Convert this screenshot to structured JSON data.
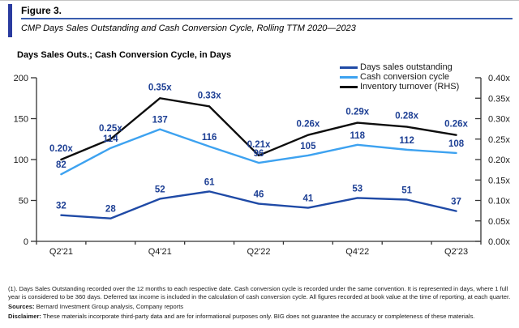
{
  "header": {
    "figure_label": "Figure 3.",
    "title": "CMP Days Sales Outstanding and Cash Conversion Cycle, Rolling TTM 2020—2023"
  },
  "chart_title": "Days Sales Outs.; Cash Conversion Cycle, in Days",
  "chart_data": {
    "type": "line",
    "categories": [
      "Q2'21",
      "",
      "Q4'21",
      "",
      "Q2'22",
      "",
      "Q4'22",
      "",
      "Q2'23"
    ],
    "series": [
      {
        "name": "Days sales outstanding",
        "axis": "left",
        "color": "#1f4aa6",
        "values": [
          32,
          28,
          52,
          61,
          46,
          41,
          53,
          51,
          37
        ],
        "labels": [
          "32",
          "28",
          "52",
          "61",
          "46",
          "41",
          "53",
          "51",
          "37"
        ],
        "label_dy": 8
      },
      {
        "name": "Cash conversion cycle",
        "axis": "left",
        "color": "#3da2f0",
        "values": [
          82,
          114,
          137,
          116,
          96,
          105,
          118,
          112,
          108
        ],
        "labels": [
          "82",
          "114",
          "137",
          "116",
          "96",
          "105",
          "118",
          "112",
          "108"
        ],
        "label_dy": 8
      },
      {
        "name": "Inventory turnover (RHS)",
        "axis": "right",
        "color": "#0d0d0d",
        "values": [
          0.2,
          0.25,
          0.35,
          0.33,
          0.21,
          0.26,
          0.29,
          0.28,
          0.26
        ],
        "labels": [
          "0.20x",
          "0.25x",
          "0.35x",
          "0.33x",
          "0.21x",
          "0.26x",
          "0.29x",
          "0.28x",
          "0.26x"
        ],
        "label_dy": 10
      }
    ],
    "left_axis": {
      "min": 0,
      "max": 200,
      "step": 50,
      "tick_labels": [
        "0",
        "50",
        "100",
        "150",
        "200"
      ]
    },
    "right_axis": {
      "min": 0,
      "max": 0.4,
      "step": 0.05,
      "tick_labels": [
        "0.00x",
        "0.05x",
        "0.10x",
        "0.15x",
        "0.20x",
        "0.25x",
        "0.30x",
        "0.35x",
        "0.40x"
      ]
    },
    "grid": false,
    "legend_position": "top-right",
    "data_label_color": "#1d3f94",
    "axis_color": "#333333"
  },
  "footer": {
    "note": "(1). Days Sales Outstanding recorded over the 12 months to each respective date. Cash conversion cycle is recorded under the same convention. It is represented in days, where 1 full year is considered to be 360 days. Deferred tax income is included in the calculation of cash conversion cycle. All figures recorded at book value at the time of reporting, at each quarter.",
    "sources_label": "Sources:",
    "sources_text": " Bernard Investment Group analysis, Company reports",
    "disclaimer_label": "Disclaimer:",
    "disclaimer_text": " These materials incorporate third-party data and are for informational purposes only. BIG does not guarantee the accuracy or completeness of these materials."
  }
}
